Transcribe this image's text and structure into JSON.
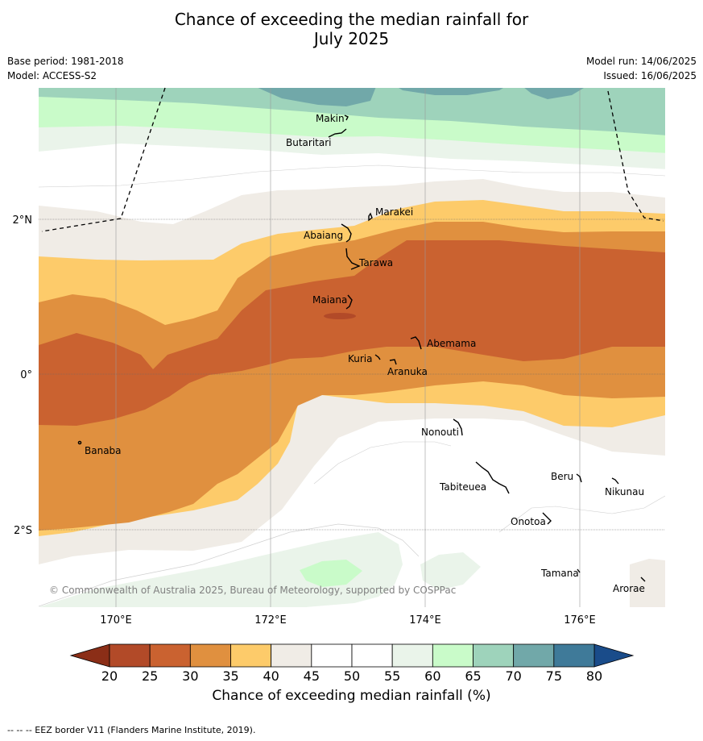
{
  "title_line1": "Chance of exceeding the median rainfall for",
  "title_line2": "July 2025",
  "base_period": "Base period: 1981-2018",
  "model": "Model: ACCESS-S2",
  "model_run": "Model run: 14/06/2025",
  "issued": "Issued: 16/06/2025",
  "copyright": "© Commonwealth of Australia 2025, Bureau of Meteorology, supported by COSPPac",
  "lon_ticks": [
    "170°E",
    "172°E",
    "174°E",
    "176°E"
  ],
  "lat_ticks": [
    "2°N",
    "0°",
    "2°S"
  ],
  "islands": [
    {
      "name": "Makin"
    },
    {
      "name": "Butaritari"
    },
    {
      "name": "Marakei"
    },
    {
      "name": "Abaiang"
    },
    {
      "name": "Tarawa"
    },
    {
      "name": "Maiana"
    },
    {
      "name": "Abemama"
    },
    {
      "name": "Kuria"
    },
    {
      "name": "Aranuka"
    },
    {
      "name": "Nonouti"
    },
    {
      "name": "Banaba"
    },
    {
      "name": "Tabiteuea"
    },
    {
      "name": "Beru"
    },
    {
      "name": "Nikunau"
    },
    {
      "name": "Onotoa"
    },
    {
      "name": "Tamana"
    },
    {
      "name": "Arorae"
    }
  ],
  "colorbar": {
    "ticks": [
      "20",
      "25",
      "30",
      "35",
      "40",
      "45",
      "50",
      "55",
      "60",
      "65",
      "70",
      "75",
      "80"
    ],
    "colors": [
      "#b24a28",
      "#ca6230",
      "#e0903f",
      "#fdcb6a",
      "#f0ece6",
      "#ffffff",
      "#ffffff",
      "#eaf4ea",
      "#c9fbc9",
      "#9ed3bb",
      "#71a8a9",
      "#3f7a99"
    ],
    "under_color": "#8b2e17",
    "over_color": "#1a4c8a",
    "label": "Chance of exceeding median rainfall (%)"
  },
  "footnote": "--  --  -- EEZ border V11 (Flanders Marine Institute, 2019)."
}
